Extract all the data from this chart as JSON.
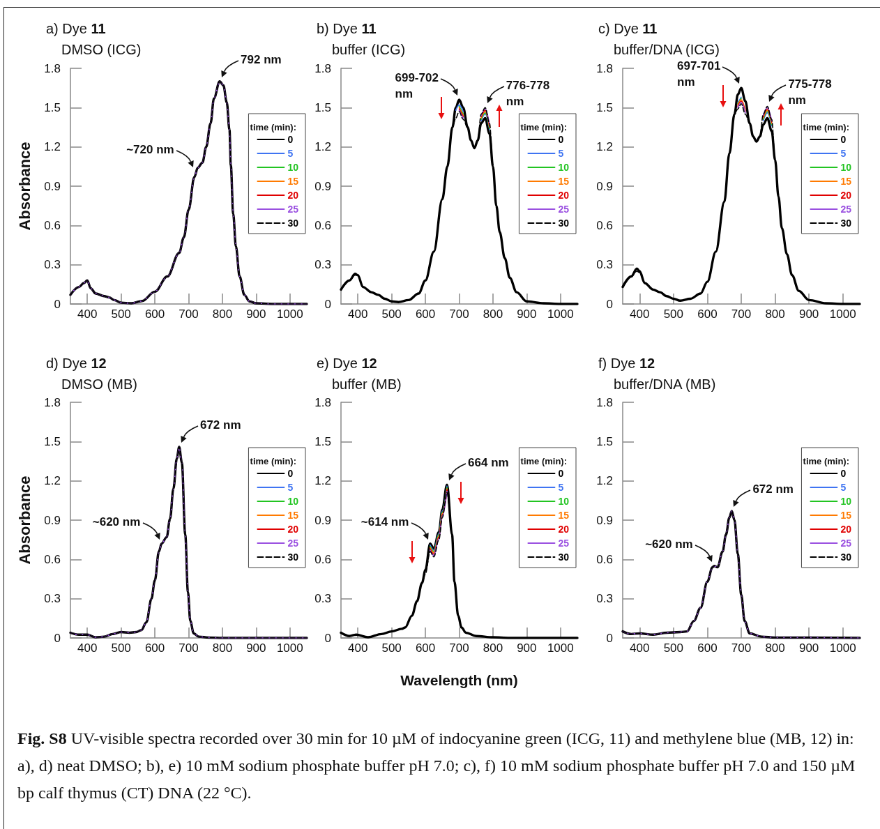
{
  "chart_data": [
    {
      "type": "line",
      "title": "a) Dye 11",
      "subtitle": "DMSO (ICG)",
      "ylabel": "Absorbance",
      "legend_title": "time (min):",
      "legend": "right",
      "marker": "none",
      "xlim": [
        350,
        1050
      ],
      "xticks": [
        400,
        500,
        600,
        700,
        800,
        900,
        1000
      ],
      "ylim": [
        0,
        1.8
      ],
      "yticks": [
        0,
        0.3,
        0.6,
        0.9,
        1.2,
        1.5,
        1.8
      ],
      "x": [
        350,
        375,
        390,
        400,
        410,
        425,
        450,
        465,
        480,
        500,
        530,
        562,
        600,
        637,
        672,
        686,
        700,
        717,
        727,
        741,
        752,
        765,
        775,
        792,
        803,
        813,
        821,
        825,
        832,
        840,
        851,
        865,
        880,
        900,
        950,
        1000,
        1050
      ],
      "series": [
        {
          "name": "0",
          "color": "#000000",
          "values": [
            0.07,
            0.13,
            0.16,
            0.18,
            0.12,
            0.08,
            0.06,
            0.05,
            0.03,
            0.01,
            0.005,
            0.023,
            0.094,
            0.21,
            0.39,
            0.51,
            0.72,
            0.97,
            1.04,
            1.08,
            1.2,
            1.38,
            1.57,
            1.7,
            1.67,
            1.54,
            1.33,
            1.06,
            0.69,
            0.44,
            0.21,
            0.07,
            0.02,
            0.005,
            0,
            0,
            0
          ]
        },
        {
          "name": "5",
          "color": "#3f74f2",
          "values": [
            null,
            null,
            null,
            null,
            null,
            null,
            null,
            null,
            null,
            null,
            null,
            null,
            null,
            null,
            null,
            null,
            null,
            null,
            null,
            null,
            null,
            null,
            null,
            null,
            null,
            null,
            null,
            null,
            null,
            null,
            null,
            null,
            null,
            null,
            null,
            null,
            null
          ]
        },
        {
          "name": "10",
          "color": "#22c422",
          "values": [
            null,
            null,
            null,
            null,
            null,
            null,
            null,
            null,
            null,
            null,
            null,
            null,
            null,
            null,
            null,
            null,
            null,
            null,
            null,
            null,
            null,
            null,
            null,
            null,
            null,
            null,
            null,
            null,
            null,
            null,
            null,
            null,
            null,
            null,
            null,
            null,
            null
          ]
        },
        {
          "name": "15",
          "color": "#ff7a00",
          "values": [
            null,
            null,
            null,
            null,
            null,
            null,
            null,
            null,
            null,
            null,
            null,
            null,
            null,
            null,
            null,
            null,
            null,
            null,
            null,
            null,
            null,
            null,
            null,
            null,
            null,
            null,
            null,
            null,
            null,
            null,
            null,
            null,
            null,
            null,
            null,
            null,
            null
          ]
        },
        {
          "name": "20",
          "color": "#e00000",
          "values": [
            null,
            null,
            null,
            null,
            null,
            null,
            null,
            null,
            null,
            null,
            null,
            null,
            null,
            null,
            null,
            null,
            null,
            null,
            null,
            null,
            null,
            null,
            null,
            null,
            null,
            null,
            null,
            null,
            null,
            null,
            null,
            null,
            null,
            null,
            null,
            null,
            null
          ]
        },
        {
          "name": "25",
          "color": "#9a50e0",
          "values": [
            0.07,
            0.13,
            0.16,
            0.18,
            0.12,
            0.08,
            0.06,
            0.05,
            0.03,
            0.01,
            0.005,
            0.023,
            0.094,
            0.21,
            0.39,
            0.51,
            0.72,
            0.97,
            1.04,
            1.08,
            1.2,
            1.38,
            1.57,
            1.7,
            1.67,
            1.54,
            1.33,
            1.06,
            0.69,
            0.44,
            0.21,
            0.07,
            0.02,
            0.005,
            0,
            0,
            0
          ]
        },
        {
          "name": "30",
          "color": "#000000",
          "line_style": "dashed",
          "values": [
            0.07,
            0.13,
            0.16,
            0.18,
            0.12,
            0.08,
            0.06,
            0.05,
            0.03,
            0.01,
            0.005,
            0.023,
            0.094,
            0.21,
            0.39,
            0.51,
            0.72,
            0.97,
            1.04,
            1.08,
            1.2,
            1.38,
            1.57,
            1.7,
            1.67,
            1.54,
            1.33,
            1.06,
            0.69,
            0.44,
            0.21,
            0.07,
            0.02,
            0.005,
            0,
            0,
            0
          ]
        }
      ],
      "annotations": [
        {
          "text": "~720 nm",
          "x": 720,
          "y": 1.01
        },
        {
          "text": "792 nm",
          "x": 792,
          "y": 1.7
        }
      ]
    },
    {
      "type": "line",
      "title": "b) Dye 11",
      "subtitle": "buffer (ICG)",
      "legend_title": "time (min):",
      "legend": "right",
      "marker": "none",
      "xlim": [
        350,
        1050
      ],
      "xticks": [
        400,
        500,
        600,
        700,
        800,
        900,
        1000
      ],
      "ylim": [
        0,
        1.8
      ],
      "yticks": [
        0,
        0.3,
        0.6,
        0.9,
        1.2,
        1.5,
        1.8
      ],
      "x": [
        350,
        375,
        392,
        400,
        415,
        440,
        460,
        480,
        500,
        520,
        550,
        580,
        600,
        625,
        650,
        665,
        680,
        690,
        700,
        712,
        725,
        735,
        745,
        755,
        765,
        777,
        790,
        800,
        810,
        820,
        835,
        850,
        870,
        900,
        950,
        1000,
        1050
      ],
      "series": [
        {
          "name": "0",
          "color": "#000000",
          "values": [
            0.11,
            0.18,
            0.23,
            0.22,
            0.13,
            0.09,
            0.07,
            0.04,
            0.02,
            0.015,
            0.03,
            0.08,
            0.18,
            0.4,
            0.8,
            1.05,
            1.35,
            1.5,
            1.56,
            1.5,
            1.35,
            1.25,
            1.19,
            1.25,
            1.38,
            1.42,
            1.3,
            1.05,
            0.75,
            0.55,
            0.35,
            0.2,
            0.09,
            0.02,
            0.005,
            0,
            0
          ]
        },
        {
          "name": "5",
          "color": "#3f74f2",
          "values": [
            null,
            null,
            null,
            null,
            null,
            null,
            null,
            null,
            null,
            null,
            null,
            null,
            null,
            null,
            null,
            null,
            null,
            1.48,
            1.52,
            1.47,
            null,
            null,
            null,
            null,
            1.4,
            1.45,
            1.33,
            null,
            null,
            null,
            null,
            null,
            null,
            null,
            null,
            null,
            null
          ]
        },
        {
          "name": "10",
          "color": "#22c422",
          "values": [
            null,
            null,
            null,
            null,
            null,
            null,
            null,
            null,
            null,
            null,
            null,
            null,
            null,
            null,
            null,
            null,
            null,
            null,
            1.51,
            1.45,
            null,
            null,
            null,
            null,
            1.41,
            1.46,
            1.34,
            null,
            null,
            null,
            null,
            null,
            null,
            null,
            null,
            null,
            null
          ]
        },
        {
          "name": "15",
          "color": "#ff7a00",
          "values": [
            null,
            null,
            null,
            null,
            null,
            null,
            null,
            null,
            null,
            null,
            null,
            null,
            null,
            null,
            null,
            null,
            null,
            null,
            1.5,
            1.44,
            null,
            null,
            null,
            null,
            1.42,
            1.47,
            1.35,
            null,
            null,
            null,
            null,
            null,
            null,
            null,
            null,
            null,
            null
          ]
        },
        {
          "name": "20",
          "color": "#e00000",
          "values": [
            null,
            null,
            null,
            null,
            null,
            null,
            null,
            null,
            null,
            null,
            null,
            null,
            null,
            null,
            null,
            null,
            null,
            null,
            1.49,
            1.43,
            null,
            null,
            null,
            null,
            1.43,
            1.48,
            1.36,
            null,
            null,
            null,
            null,
            null,
            null,
            null,
            null,
            null,
            null
          ]
        },
        {
          "name": "25",
          "color": "#9a50e0",
          "values": [
            null,
            null,
            null,
            null,
            null,
            null,
            null,
            null,
            null,
            null,
            null,
            null,
            null,
            null,
            null,
            null,
            null,
            null,
            1.48,
            1.42,
            null,
            null,
            null,
            null,
            1.44,
            1.49,
            1.37,
            null,
            null,
            null,
            null,
            null,
            null,
            null,
            null,
            null,
            null
          ]
        },
        {
          "name": "30",
          "color": "#000000",
          "line_style": "dashed",
          "values": [
            0.11,
            0.18,
            0.22,
            0.22,
            0.13,
            0.09,
            0.07,
            0.04,
            0.02,
            0.015,
            0.03,
            0.08,
            0.18,
            0.4,
            0.8,
            1.05,
            1.35,
            1.42,
            1.47,
            1.41,
            1.35,
            1.25,
            1.19,
            1.25,
            1.45,
            1.5,
            1.38,
            1.05,
            0.75,
            0.55,
            0.35,
            0.2,
            0.09,
            0.02,
            0.005,
            0,
            0
          ]
        }
      ],
      "annotations": [
        {
          "text": "699-702\nnm",
          "x": 700,
          "y": 1.56
        },
        {
          "text": "776-778\nnm",
          "x": 777,
          "y": 1.5
        }
      ]
    },
    {
      "type": "line",
      "title": "c) Dye 11",
      "subtitle": "buffer/DNA (ICG)",
      "legend_title": "time (min):",
      "legend": "right",
      "marker": "none",
      "xlim": [
        350,
        1050
      ],
      "xticks": [
        400,
        500,
        600,
        700,
        800,
        900,
        1000
      ],
      "ylim": [
        0,
        1.8
      ],
      "yticks": [
        0,
        0.3,
        0.6,
        0.9,
        1.2,
        1.5,
        1.8
      ],
      "x": [
        350,
        375,
        392,
        400,
        415,
        440,
        460,
        480,
        500,
        520,
        550,
        580,
        600,
        625,
        650,
        665,
        680,
        690,
        700,
        712,
        725,
        735,
        745,
        755,
        765,
        777,
        790,
        800,
        810,
        820,
        835,
        850,
        870,
        900,
        950,
        1000,
        1050
      ],
      "series": [
        {
          "name": "0",
          "color": "#000000",
          "values": [
            0.13,
            0.21,
            0.27,
            0.25,
            0.16,
            0.11,
            0.09,
            0.06,
            0.04,
            0.025,
            0.04,
            0.08,
            0.17,
            0.4,
            0.78,
            1.15,
            1.45,
            1.6,
            1.65,
            1.55,
            1.38,
            1.28,
            1.24,
            1.28,
            1.37,
            1.42,
            1.32,
            1.1,
            0.82,
            0.58,
            0.38,
            0.22,
            0.1,
            0.03,
            0.005,
            0,
            0
          ]
        },
        {
          "name": "5",
          "color": "#3f74f2",
          "values": [
            null,
            null,
            null,
            null,
            null,
            null,
            null,
            null,
            null,
            null,
            null,
            null,
            null,
            null,
            null,
            null,
            null,
            1.54,
            1.58,
            null,
            null,
            null,
            null,
            null,
            1.4,
            1.46,
            1.36,
            null,
            null,
            null,
            null,
            null,
            null,
            null,
            null,
            null,
            null
          ]
        },
        {
          "name": "10",
          "color": "#22c422",
          "values": [
            null,
            null,
            null,
            null,
            null,
            null,
            null,
            null,
            null,
            null,
            null,
            null,
            null,
            null,
            null,
            null,
            null,
            1.53,
            1.57,
            null,
            null,
            null,
            null,
            null,
            1.41,
            1.47,
            1.37,
            null,
            null,
            null,
            null,
            null,
            null,
            null,
            null,
            null,
            null
          ]
        },
        {
          "name": "15",
          "color": "#ff7a00",
          "values": [
            null,
            null,
            null,
            null,
            null,
            null,
            null,
            null,
            null,
            null,
            null,
            null,
            null,
            null,
            null,
            null,
            null,
            1.52,
            1.56,
            1.48,
            null,
            null,
            null,
            null,
            1.42,
            1.48,
            1.38,
            null,
            null,
            null,
            null,
            null,
            null,
            null,
            null,
            null,
            null
          ]
        },
        {
          "name": "20",
          "color": "#e00000",
          "values": [
            null,
            null,
            null,
            null,
            null,
            null,
            null,
            null,
            null,
            null,
            null,
            null,
            null,
            null,
            null,
            null,
            null,
            1.51,
            1.55,
            1.47,
            null,
            null,
            null,
            null,
            1.43,
            1.49,
            1.39,
            null,
            null,
            null,
            null,
            null,
            null,
            null,
            null,
            null,
            null
          ]
        },
        {
          "name": "25",
          "color": "#9a50e0",
          "values": [
            null,
            null,
            null,
            null,
            null,
            null,
            null,
            null,
            null,
            null,
            null,
            null,
            null,
            null,
            null,
            null,
            null,
            1.5,
            1.54,
            1.46,
            null,
            null,
            null,
            null,
            1.44,
            1.5,
            1.4,
            null,
            null,
            null,
            null,
            null,
            null,
            null,
            null,
            null,
            null
          ]
        },
        {
          "name": "30",
          "color": "#000000",
          "line_style": "dashed",
          "values": [
            0.13,
            0.21,
            0.25,
            0.24,
            0.16,
            0.11,
            0.09,
            0.06,
            0.04,
            0.025,
            0.04,
            0.08,
            0.17,
            0.4,
            0.78,
            1.15,
            1.45,
            1.49,
            1.53,
            1.45,
            1.38,
            1.28,
            1.24,
            1.28,
            1.45,
            1.51,
            1.41,
            1.1,
            0.82,
            0.58,
            0.38,
            0.22,
            0.1,
            0.03,
            0.005,
            0,
            0
          ]
        }
      ],
      "annotations": [
        {
          "text": "697-701\nnm",
          "x": 700,
          "y": 1.65
        },
        {
          "text": "775-778\nnm",
          "x": 777,
          "y": 1.51
        }
      ]
    },
    {
      "type": "line",
      "title": "d) Dye 12",
      "subtitle": "DMSO (MB)",
      "ylabel": "Absorbance",
      "legend_title": "time (min):",
      "legend": "right",
      "marker": "none",
      "xlim": [
        350,
        1050
      ],
      "xticks": [
        400,
        500,
        600,
        700,
        800,
        900,
        1000
      ],
      "ylim": [
        0,
        1.8
      ],
      "yticks": [
        0,
        0.3,
        0.6,
        0.9,
        1.2,
        1.5,
        1.8
      ],
      "x": [
        350,
        375,
        400,
        425,
        450,
        475,
        500,
        525,
        545,
        560,
        575,
        590,
        600,
        612,
        620,
        635,
        645,
        655,
        665,
        672,
        680,
        690,
        698,
        705,
        715,
        730,
        760,
        800,
        1050
      ],
      "series": [
        {
          "name": "0",
          "color": "#000000",
          "values": [
            0.04,
            0.025,
            0.025,
            0.005,
            0.01,
            0.03,
            0.045,
            0.04,
            0.045,
            0.06,
            0.12,
            0.3,
            0.44,
            0.66,
            0.72,
            0.77,
            0.91,
            1.14,
            1.37,
            1.46,
            1.34,
            0.79,
            0.35,
            0.13,
            0.035,
            0.01,
            0.003,
            0,
            0
          ]
        },
        {
          "name": "5",
          "color": "#3f74f2",
          "values": [
            null,
            null,
            null,
            null,
            null,
            null,
            null,
            null,
            null,
            null,
            null,
            null,
            null,
            null,
            null,
            null,
            null,
            null,
            null,
            null,
            null,
            null,
            null,
            null,
            null,
            null,
            null,
            null,
            null
          ]
        },
        {
          "name": "10",
          "color": "#22c422",
          "values": [
            null,
            null,
            null,
            null,
            null,
            null,
            null,
            null,
            null,
            null,
            null,
            null,
            null,
            null,
            null,
            null,
            null,
            null,
            null,
            null,
            null,
            null,
            null,
            null,
            null,
            null,
            null,
            null,
            null
          ]
        },
        {
          "name": "15",
          "color": "#ff7a00",
          "values": [
            null,
            null,
            null,
            null,
            null,
            null,
            null,
            null,
            null,
            null,
            null,
            null,
            null,
            null,
            null,
            null,
            null,
            null,
            null,
            null,
            null,
            null,
            null,
            null,
            null,
            null,
            null,
            null,
            null
          ]
        },
        {
          "name": "20",
          "color": "#e00000",
          "values": [
            null,
            null,
            null,
            null,
            null,
            null,
            null,
            null,
            null,
            null,
            null,
            null,
            null,
            null,
            null,
            null,
            null,
            null,
            null,
            null,
            null,
            null,
            null,
            null,
            null,
            null,
            null,
            null,
            null
          ]
        },
        {
          "name": "25",
          "color": "#9a50e0",
          "values": [
            0.04,
            0.025,
            0.025,
            0.005,
            0.01,
            0.03,
            0.045,
            0.04,
            0.045,
            0.06,
            0.12,
            0.3,
            0.44,
            0.66,
            0.72,
            0.77,
            0.91,
            1.14,
            1.37,
            1.46,
            1.34,
            0.79,
            0.35,
            0.13,
            0.035,
            0.01,
            0.003,
            0,
            0
          ]
        },
        {
          "name": "30",
          "color": "#000000",
          "line_style": "dashed",
          "values": [
            0.04,
            0.025,
            0.025,
            0.005,
            0.01,
            0.03,
            0.045,
            0.04,
            0.045,
            0.06,
            0.12,
            0.3,
            0.44,
            0.66,
            0.72,
            0.77,
            0.91,
            1.14,
            1.37,
            1.46,
            1.34,
            0.79,
            0.35,
            0.13,
            0.035,
            0.01,
            0.003,
            0,
            0
          ]
        }
      ],
      "annotations": [
        {
          "text": "~620 nm",
          "x": 620,
          "y": 0.72
        },
        {
          "text": "672 nm",
          "x": 672,
          "y": 1.46
        }
      ]
    },
    {
      "type": "line",
      "title": "e) Dye 12",
      "subtitle": "buffer (MB)",
      "xlabel": "Wavelength (nm)",
      "legend_title": "time (min):",
      "legend": "right",
      "marker": "none",
      "xlim": [
        350,
        1050
      ],
      "xticks": [
        400,
        500,
        600,
        700,
        800,
        900,
        1000
      ],
      "ylim": [
        0,
        1.8
      ],
      "yticks": [
        0,
        0.3,
        0.6,
        0.9,
        1.2,
        1.5,
        1.8
      ],
      "x": [
        350,
        375,
        395,
        430,
        470,
        500,
        530,
        540,
        560,
        575,
        590,
        600,
        614,
        625,
        640,
        650,
        664,
        679,
        686,
        697,
        707,
        720,
        750,
        800,
        850,
        1050
      ],
      "series": [
        {
          "name": "0",
          "color": "#000000",
          "values": [
            0.04,
            0.015,
            0.025,
            0.005,
            0.03,
            0.05,
            0.07,
            0.08,
            0.17,
            0.28,
            0.42,
            0.52,
            0.72,
            0.68,
            0.81,
            0.98,
            1.17,
            0.79,
            0.43,
            0.17,
            0.08,
            0.04,
            0.015,
            0.005,
            0,
            0
          ]
        },
        {
          "name": "5",
          "color": "#3f74f2",
          "values": [
            null,
            null,
            null,
            null,
            null,
            null,
            null,
            null,
            null,
            null,
            null,
            null,
            0.71,
            0.67,
            0.8,
            0.97,
            1.16,
            null,
            null,
            null,
            null,
            null,
            null,
            null,
            null,
            null
          ]
        },
        {
          "name": "10",
          "color": "#22c422",
          "values": [
            null,
            null,
            null,
            null,
            null,
            null,
            null,
            null,
            null,
            null,
            null,
            null,
            0.7,
            0.66,
            0.79,
            0.96,
            1.15,
            null,
            null,
            null,
            null,
            null,
            null,
            null,
            null,
            null
          ]
        },
        {
          "name": "15",
          "color": "#ff7a00",
          "values": [
            null,
            null,
            null,
            null,
            null,
            null,
            null,
            null,
            null,
            null,
            null,
            null,
            0.69,
            0.65,
            0.78,
            0.95,
            1.14,
            null,
            null,
            null,
            null,
            null,
            null,
            null,
            null,
            null
          ]
        },
        {
          "name": "20",
          "color": "#e00000",
          "values": [
            null,
            null,
            null,
            null,
            null,
            null,
            null,
            null,
            null,
            null,
            null,
            null,
            0.68,
            0.64,
            0.77,
            0.94,
            1.13,
            null,
            null,
            null,
            null,
            null,
            null,
            null,
            null,
            null
          ]
        },
        {
          "name": "25",
          "color": "#9a50e0",
          "values": [
            null,
            null,
            null,
            null,
            null,
            null,
            null,
            null,
            null,
            null,
            null,
            null,
            0.67,
            0.63,
            0.76,
            0.93,
            1.12,
            null,
            null,
            null,
            null,
            null,
            null,
            null,
            null,
            null
          ]
        },
        {
          "name": "30",
          "color": "#000000",
          "line_style": "dashed",
          "values": [
            0.04,
            0.015,
            0.025,
            0.005,
            0.03,
            0.05,
            0.07,
            0.08,
            0.17,
            0.28,
            0.42,
            0.49,
            0.66,
            0.62,
            0.75,
            0.92,
            1.11,
            0.79,
            0.43,
            0.17,
            0.08,
            0.04,
            0.015,
            0.005,
            0,
            0
          ]
        }
      ],
      "annotations": [
        {
          "text": "~614 nm",
          "x": 614,
          "y": 0.72
        },
        {
          "text": "664 nm",
          "x": 664,
          "y": 1.17
        }
      ]
    },
    {
      "type": "line",
      "title": "f) Dye 12",
      "subtitle": "buffer/DNA (MB)",
      "legend_title": "time (min):",
      "legend": "right",
      "marker": "none",
      "xlim": [
        350,
        1050
      ],
      "xticks": [
        400,
        500,
        600,
        700,
        800,
        900,
        1000
      ],
      "ylim": [
        0,
        1.8
      ],
      "yticks": [
        0,
        0.3,
        0.6,
        0.9,
        1.2,
        1.5,
        1.8
      ],
      "x": [
        350,
        375,
        400,
        440,
        480,
        520,
        540,
        560,
        580,
        600,
        615,
        620,
        630,
        645,
        655,
        665,
        672,
        680,
        690,
        700,
        710,
        725,
        760,
        800,
        1050
      ],
      "series": [
        {
          "name": "0",
          "color": "#000000",
          "values": [
            0.05,
            0.03,
            0.035,
            0.025,
            0.04,
            0.045,
            0.05,
            0.13,
            0.23,
            0.43,
            0.54,
            0.55,
            0.54,
            0.66,
            0.79,
            0.92,
            0.97,
            0.9,
            0.64,
            0.33,
            0.13,
            0.035,
            0.01,
            0.003,
            0
          ]
        },
        {
          "name": "5",
          "color": "#3f74f2",
          "values": [
            null,
            null,
            null,
            null,
            null,
            null,
            null,
            null,
            null,
            null,
            null,
            null,
            null,
            null,
            null,
            null,
            null,
            null,
            null,
            null,
            null,
            null,
            null,
            null,
            null
          ]
        },
        {
          "name": "10",
          "color": "#22c422",
          "values": [
            null,
            null,
            null,
            null,
            null,
            null,
            null,
            null,
            null,
            null,
            null,
            null,
            null,
            null,
            null,
            null,
            null,
            null,
            null,
            null,
            null,
            null,
            null,
            null,
            null
          ]
        },
        {
          "name": "15",
          "color": "#ff7a00",
          "values": [
            null,
            null,
            null,
            null,
            null,
            null,
            null,
            null,
            null,
            null,
            null,
            null,
            null,
            null,
            null,
            null,
            null,
            null,
            null,
            null,
            null,
            null,
            null,
            null,
            null
          ]
        },
        {
          "name": "20",
          "color": "#e00000",
          "values": [
            null,
            null,
            null,
            null,
            null,
            null,
            null,
            null,
            null,
            null,
            null,
            null,
            null,
            null,
            null,
            null,
            null,
            null,
            null,
            null,
            null,
            null,
            null,
            null,
            null
          ]
        },
        {
          "name": "25",
          "color": "#9a50e0",
          "values": [
            0.05,
            0.03,
            0.035,
            0.025,
            0.04,
            0.045,
            0.05,
            0.13,
            0.23,
            0.43,
            0.54,
            0.55,
            0.54,
            0.66,
            0.79,
            0.92,
            0.97,
            0.9,
            0.64,
            0.33,
            0.13,
            0.035,
            0.01,
            0.003,
            0
          ]
        },
        {
          "name": "30",
          "color": "#000000",
          "line_style": "dashed",
          "values": [
            0.05,
            0.03,
            0.035,
            0.025,
            0.04,
            0.045,
            0.05,
            0.13,
            0.23,
            0.43,
            0.54,
            0.55,
            0.54,
            0.66,
            0.79,
            0.92,
            0.97,
            0.9,
            0.64,
            0.33,
            0.13,
            0.035,
            0.01,
            0.003,
            0
          ]
        }
      ],
      "annotations": [
        {
          "text": "~620 nm",
          "x": 620,
          "y": 0.55
        },
        {
          "text": "672 nm",
          "x": 672,
          "y": 0.97
        }
      ]
    },
    {
      "type": "other",
      "title": "Fig. S8",
      "annotations": [
        "UV-visible spectra recorded over 30 min for 10 µM of indocyanine green (ICG, 11) and methylene blue (MB, 12) in: a), d) neat DMSO; b), e) 10 mM sodium phosphate buffer pH 7.0;  c), f) 10 mM sodium phosphate buffer pH 7.0 and 150 µM bp calf thymus (CT) DNA (22 °C)."
      ]
    }
  ]
}
